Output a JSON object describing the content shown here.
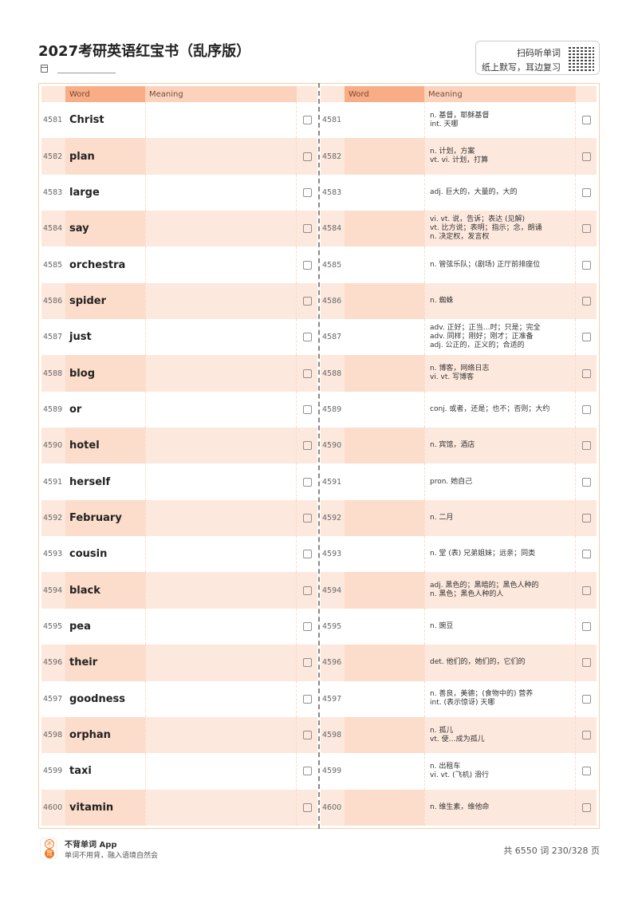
{
  "header": {
    "title": "2027考研英语红宝书（乱序版）",
    "qr_line1": "扫码听单词",
    "qr_line2": "纸上默写，耳边复习"
  },
  "columns": {
    "word": "Word",
    "meaning": "Meaning"
  },
  "entries": [
    {
      "num": "4581",
      "word": "Christ",
      "meaning": "n. 基督，耶稣基督\nint. 天哪"
    },
    {
      "num": "4582",
      "word": "plan",
      "meaning": "n. 计划，方案\nvt. vi. 计划，打算"
    },
    {
      "num": "4583",
      "word": "large",
      "meaning": "adj. 巨大的，大量的，大的"
    },
    {
      "num": "4584",
      "word": "say",
      "meaning": "vi. vt. 说，告诉；表达 (见解)\nvt. 比方说；表明；指示；念，朗诵\nn. 决定权，发言权"
    },
    {
      "num": "4585",
      "word": "orchestra",
      "meaning": "n. 管弦乐队；(剧场) 正厅前排座位"
    },
    {
      "num": "4586",
      "word": "spider",
      "meaning": "n. 蜘蛛"
    },
    {
      "num": "4587",
      "word": "just",
      "meaning": "adv. 正好；正当…时；只是；完全\nadv. 同样；刚好；刚才；正准备\nadj. 公正的，正义的；合适的"
    },
    {
      "num": "4588",
      "word": "blog",
      "meaning": "n. 博客，网络日志\nvi. vt. 写博客"
    },
    {
      "num": "4589",
      "word": "or",
      "meaning": "conj. 或者，还是；也不；否则；大约"
    },
    {
      "num": "4590",
      "word": "hotel",
      "meaning": "n. 宾馆，酒店"
    },
    {
      "num": "4591",
      "word": "herself",
      "meaning": "pron. 她自己"
    },
    {
      "num": "4592",
      "word": "February",
      "meaning": "n. 二月"
    },
    {
      "num": "4593",
      "word": "cousin",
      "meaning": "n. 堂 (表) 兄弟姐妹；远亲；同类"
    },
    {
      "num": "4594",
      "word": "black",
      "meaning": "adj. 黑色的；黑暗的；黑色人种的\nn. 黑色；黑色人种的人"
    },
    {
      "num": "4595",
      "word": "pea",
      "meaning": "n. 豌豆"
    },
    {
      "num": "4596",
      "word": "their",
      "meaning": "det. 他们的，她们的，它们的"
    },
    {
      "num": "4597",
      "word": "goodness",
      "meaning": "n. 善良，美德；(食物中的) 营养\nint. (表示惊讶) 天哪"
    },
    {
      "num": "4598",
      "word": "orphan",
      "meaning": "n. 孤儿\nvt. 使…成为孤儿"
    },
    {
      "num": "4599",
      "word": "taxi",
      "meaning": "n. 出租车\nvi. vt. (飞机) 滑行"
    },
    {
      "num": "4600",
      "word": "vitamin",
      "meaning": "n. 维生素，维他命"
    }
  ],
  "footer": {
    "brand": "不背单词 App",
    "slogan": "单词不用背，融入语境自然会",
    "logo_top": "不",
    "logo_bottom": "背",
    "page_info": "共 6550 词 230/328 页"
  },
  "colors": {
    "accent": "#f8ad86",
    "row_alt": "#fde8dd",
    "brand": "#f07a22"
  }
}
